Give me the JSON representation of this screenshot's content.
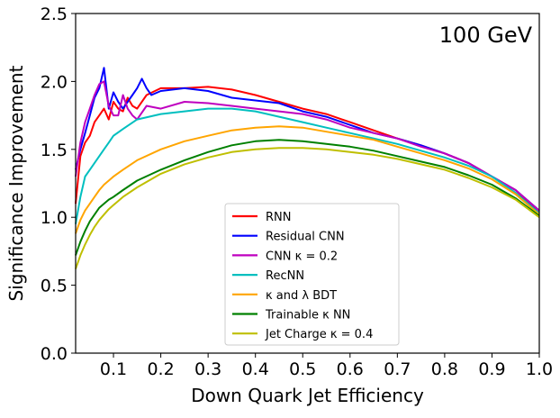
{
  "chart_data": {
    "type": "line",
    "title": "",
    "annotation": "100 GeV",
    "xlabel": "Down Quark Jet Efficiency",
    "ylabel": "Significance Improvement",
    "xlim": [
      0.02,
      1.0
    ],
    "ylim": [
      0.0,
      2.5
    ],
    "xticks": [
      0.1,
      0.2,
      0.3,
      0.4,
      0.5,
      0.6,
      0.7,
      0.8,
      0.9,
      1.0
    ],
    "xtick_labels": [
      "0.1",
      "0.2",
      "0.3",
      "0.4",
      "0.5",
      "0.6",
      "0.7",
      "0.8",
      "0.9",
      "1.0"
    ],
    "yticks": [
      0.0,
      0.5,
      1.0,
      1.5,
      2.0,
      2.5
    ],
    "ytick_labels": [
      "0.0",
      "0.5",
      "1.0",
      "1.5",
      "2.0",
      "2.5"
    ],
    "legend_position": "lower-center",
    "series": [
      {
        "name": "RNN",
        "label": "RNN",
        "color": "#ff0000",
        "x": [
          0.02,
          0.03,
          0.04,
          0.05,
          0.06,
          0.07,
          0.08,
          0.09,
          0.1,
          0.11,
          0.12,
          0.13,
          0.14,
          0.15,
          0.17,
          0.2,
          0.25,
          0.3,
          0.35,
          0.4,
          0.45,
          0.5,
          0.55,
          0.6,
          0.65,
          0.7,
          0.75,
          0.8,
          0.85,
          0.9,
          0.95,
          1.0
        ],
        "y": [
          1.1,
          1.45,
          1.55,
          1.6,
          1.7,
          1.75,
          1.8,
          1.72,
          1.85,
          1.8,
          1.78,
          1.88,
          1.82,
          1.8,
          1.9,
          1.95,
          1.95,
          1.96,
          1.94,
          1.9,
          1.85,
          1.8,
          1.76,
          1.7,
          1.64,
          1.58,
          1.53,
          1.47,
          1.4,
          1.3,
          1.2,
          1.03
        ]
      },
      {
        "name": "Residual CNN",
        "label": "Residual CNN",
        "color": "#0000ff",
        "x": [
          0.02,
          0.03,
          0.04,
          0.05,
          0.06,
          0.07,
          0.08,
          0.09,
          0.1,
          0.11,
          0.12,
          0.13,
          0.14,
          0.15,
          0.16,
          0.17,
          0.18,
          0.2,
          0.25,
          0.3,
          0.35,
          0.4,
          0.45,
          0.5,
          0.55,
          0.6,
          0.65,
          0.7,
          0.75,
          0.8,
          0.85,
          0.9,
          0.95,
          1.0
        ],
        "y": [
          1.35,
          1.5,
          1.62,
          1.75,
          1.88,
          1.95,
          2.1,
          1.8,
          1.92,
          1.85,
          1.8,
          1.85,
          1.9,
          1.95,
          2.02,
          1.95,
          1.9,
          1.93,
          1.95,
          1.93,
          1.88,
          1.86,
          1.84,
          1.78,
          1.74,
          1.68,
          1.62,
          1.58,
          1.53,
          1.47,
          1.4,
          1.3,
          1.2,
          1.05
        ]
      },
      {
        "name": "CNN κ = 0.2",
        "label": "CNN κ = 0.2",
        "color": "#bf00bf",
        "x": [
          0.02,
          0.03,
          0.04,
          0.05,
          0.06,
          0.07,
          0.08,
          0.09,
          0.1,
          0.11,
          0.12,
          0.13,
          0.14,
          0.15,
          0.17,
          0.2,
          0.25,
          0.3,
          0.35,
          0.4,
          0.45,
          0.5,
          0.55,
          0.6,
          0.65,
          0.7,
          0.75,
          0.8,
          0.85,
          0.9,
          0.95,
          1.0
        ],
        "y": [
          1.3,
          1.55,
          1.7,
          1.8,
          1.9,
          1.98,
          2.0,
          1.82,
          1.75,
          1.75,
          1.9,
          1.8,
          1.75,
          1.72,
          1.82,
          1.8,
          1.85,
          1.84,
          1.82,
          1.8,
          1.78,
          1.76,
          1.72,
          1.66,
          1.62,
          1.58,
          1.52,
          1.47,
          1.4,
          1.3,
          1.2,
          1.05
        ]
      },
      {
        "name": "RecNN",
        "label": "RecNN",
        "color": "#00bfbf",
        "x": [
          0.02,
          0.03,
          0.04,
          0.05,
          0.06,
          0.07,
          0.08,
          0.09,
          0.1,
          0.12,
          0.15,
          0.2,
          0.25,
          0.3,
          0.35,
          0.4,
          0.45,
          0.5,
          0.55,
          0.6,
          0.65,
          0.7,
          0.75,
          0.8,
          0.85,
          0.9,
          0.95,
          1.0
        ],
        "y": [
          0.95,
          1.15,
          1.3,
          1.35,
          1.4,
          1.45,
          1.5,
          1.55,
          1.6,
          1.65,
          1.72,
          1.76,
          1.78,
          1.8,
          1.8,
          1.78,
          1.74,
          1.7,
          1.66,
          1.62,
          1.58,
          1.54,
          1.49,
          1.44,
          1.38,
          1.3,
          1.18,
          1.03
        ]
      },
      {
        "name": "κ and λ BDT",
        "label": "κ and λ BDT",
        "color": "#ffa500",
        "x": [
          0.02,
          0.03,
          0.04,
          0.05,
          0.06,
          0.07,
          0.08,
          0.09,
          0.1,
          0.12,
          0.15,
          0.2,
          0.25,
          0.3,
          0.35,
          0.4,
          0.45,
          0.5,
          0.55,
          0.6,
          0.65,
          0.7,
          0.75,
          0.8,
          0.85,
          0.9,
          0.95,
          1.0
        ],
        "y": [
          0.88,
          0.98,
          1.05,
          1.1,
          1.15,
          1.2,
          1.24,
          1.27,
          1.3,
          1.35,
          1.42,
          1.5,
          1.56,
          1.6,
          1.64,
          1.66,
          1.67,
          1.66,
          1.63,
          1.6,
          1.57,
          1.52,
          1.47,
          1.42,
          1.36,
          1.28,
          1.17,
          1.02
        ]
      },
      {
        "name": "Trainable κ NN",
        "label": "Trainable κ NN",
        "color": "#008000",
        "x": [
          0.02,
          0.03,
          0.04,
          0.05,
          0.06,
          0.07,
          0.08,
          0.09,
          0.1,
          0.12,
          0.15,
          0.2,
          0.25,
          0.3,
          0.35,
          0.4,
          0.45,
          0.5,
          0.55,
          0.6,
          0.65,
          0.7,
          0.75,
          0.8,
          0.85,
          0.9,
          0.95,
          1.0
        ],
        "y": [
          0.72,
          0.82,
          0.9,
          0.97,
          1.02,
          1.07,
          1.1,
          1.13,
          1.15,
          1.2,
          1.27,
          1.35,
          1.42,
          1.48,
          1.53,
          1.56,
          1.57,
          1.56,
          1.54,
          1.52,
          1.49,
          1.45,
          1.41,
          1.37,
          1.31,
          1.24,
          1.14,
          1.01
        ]
      },
      {
        "name": "Jet Charge κ = 0.4",
        "label": "Jet Charge κ = 0.4",
        "color": "#bfbf00",
        "x": [
          0.02,
          0.03,
          0.04,
          0.05,
          0.06,
          0.07,
          0.08,
          0.09,
          0.1,
          0.12,
          0.15,
          0.2,
          0.25,
          0.3,
          0.35,
          0.4,
          0.45,
          0.5,
          0.55,
          0.6,
          0.65,
          0.7,
          0.75,
          0.8,
          0.85,
          0.9,
          0.95,
          1.0
        ],
        "y": [
          0.62,
          0.72,
          0.8,
          0.87,
          0.93,
          0.98,
          1.02,
          1.06,
          1.09,
          1.15,
          1.22,
          1.32,
          1.39,
          1.44,
          1.48,
          1.5,
          1.51,
          1.51,
          1.5,
          1.48,
          1.46,
          1.43,
          1.39,
          1.35,
          1.29,
          1.22,
          1.13,
          1.0
        ]
      }
    ]
  }
}
